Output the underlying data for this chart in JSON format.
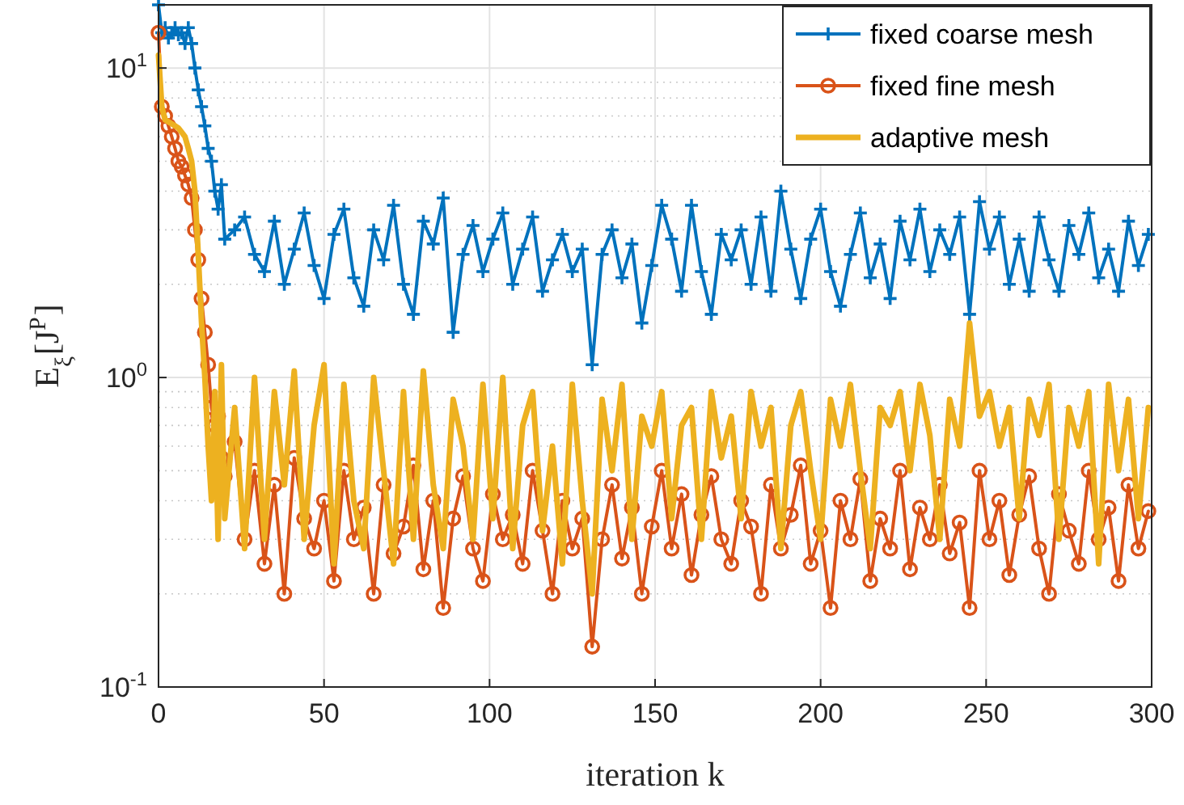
{
  "chart_data": {
    "type": "line",
    "xlabel": "iteration k",
    "ylabel": "E$_{ξ}$[J$^{P}$]",
    "log": "y",
    "x": [
      0,
      1,
      2,
      3,
      4,
      5,
      6,
      7,
      8,
      9,
      10,
      11,
      12,
      13,
      14,
      15,
      16,
      17,
      18,
      19,
      20,
      23,
      26,
      29,
      32,
      35,
      38,
      41,
      44,
      47,
      50,
      53,
      56,
      59,
      62,
      65,
      68,
      71,
      74,
      77,
      80,
      83,
      86,
      89,
      92,
      95,
      98,
      101,
      104,
      107,
      110,
      113,
      116,
      119,
      122,
      125,
      128,
      131,
      134,
      137,
      140,
      143,
      146,
      149,
      152,
      155,
      158,
      161,
      164,
      167,
      170,
      173,
      176,
      179,
      182,
      185,
      188,
      191,
      194,
      197,
      200,
      203,
      206,
      209,
      212,
      215,
      218,
      221,
      224,
      227,
      230,
      233,
      236,
      239,
      242,
      245,
      248,
      251,
      254,
      257,
      260,
      263,
      266,
      269,
      272,
      275,
      278,
      281,
      284,
      287,
      290,
      293,
      296,
      299
    ],
    "series": [
      {
        "name": "fixed coarse mesh",
        "color": "#0072bd",
        "marker": "cross",
        "values": [
          16,
          13,
          13.5,
          12.5,
          13,
          13.5,
          12.8,
          13,
          12,
          13.5,
          12,
          10,
          8.5,
          7.5,
          6.5,
          5.5,
          5,
          4,
          3.5,
          4.2,
          2.8,
          3.0,
          3.3,
          2.5,
          2.2,
          3.2,
          2.0,
          2.6,
          3.4,
          2.3,
          1.8,
          2.9,
          3.5,
          2.1,
          1.7,
          3.0,
          2.4,
          3.6,
          2.0,
          1.6,
          3.2,
          2.7,
          3.8,
          1.4,
          2.5,
          3.1,
          2.2,
          2.8,
          3.4,
          2.0,
          2.6,
          3.3,
          1.9,
          2.4,
          2.9,
          2.2,
          2.6,
          1.1,
          2.5,
          3.0,
          2.1,
          2.7,
          1.5,
          2.3,
          3.6,
          2.8,
          1.9,
          3.6,
          2.2,
          1.6,
          2.9,
          2.4,
          3.0,
          2.0,
          3.3,
          1.9,
          4.0,
          2.6,
          1.8,
          2.8,
          3.5,
          2.2,
          1.7,
          2.5,
          3.4,
          2.1,
          2.7,
          1.8,
          3.2,
          2.4,
          3.5,
          2.2,
          3.0,
          2.5,
          3.3,
          1.6,
          3.7,
          2.6,
          3.3,
          2.0,
          2.8,
          1.9,
          3.3,
          2.4,
          1.9,
          3.1,
          2.5,
          3.4,
          2.1,
          2.6,
          1.9,
          3.2,
          2.3,
          2.9
        ]
      },
      {
        "name": "fixed fine mesh",
        "color": "#d95319",
        "marker": "circle",
        "values": [
          13,
          7.5,
          7,
          6.5,
          6,
          5.5,
          5,
          4.8,
          4.5,
          4.2,
          3.8,
          3,
          2.4,
          1.8,
          1.4,
          1.1,
          0.8,
          0.7,
          0.75,
          0.55,
          0.48,
          0.62,
          0.3,
          0.5,
          0.25,
          0.45,
          0.2,
          0.55,
          0.35,
          0.28,
          0.4,
          0.22,
          0.5,
          0.3,
          0.38,
          0.2,
          0.45,
          0.27,
          0.33,
          0.52,
          0.24,
          0.4,
          0.18,
          0.35,
          0.48,
          0.28,
          0.22,
          0.42,
          0.3,
          0.36,
          0.25,
          0.5,
          0.32,
          0.2,
          0.4,
          0.28,
          0.35,
          0.135,
          0.3,
          0.45,
          0.26,
          0.38,
          0.2,
          0.33,
          0.5,
          0.28,
          0.42,
          0.23,
          0.36,
          0.48,
          0.3,
          0.25,
          0.4,
          0.33,
          0.2,
          0.45,
          0.28,
          0.36,
          0.52,
          0.25,
          0.32,
          0.18,
          0.4,
          0.3,
          0.47,
          0.22,
          0.35,
          0.28,
          0.5,
          0.24,
          0.38,
          0.3,
          0.45,
          0.27,
          0.34,
          0.18,
          0.5,
          0.3,
          0.4,
          0.23,
          0.36,
          0.48,
          0.28,
          0.2,
          0.42,
          0.32,
          0.25,
          0.5,
          0.3,
          0.38,
          0.22,
          0.45,
          0.28,
          0.37
        ]
      },
      {
        "name": "adaptive mesh",
        "color": "#edb120",
        "marker": "none",
        "values": [
          11,
          7.5,
          6.8,
          6.7,
          6.6,
          6.5,
          6.4,
          6.2,
          6.0,
          5.5,
          5.0,
          4.0,
          2.5,
          1.5,
          1.0,
          0.6,
          0.4,
          0.9,
          0.3,
          1.1,
          0.35,
          0.8,
          0.28,
          1.0,
          0.3,
          0.9,
          0.45,
          1.05,
          0.3,
          0.7,
          1.1,
          0.25,
          0.95,
          0.4,
          0.28,
          1.0,
          0.5,
          0.25,
          0.9,
          0.3,
          1.05,
          0.45,
          0.28,
          0.85,
          0.6,
          0.3,
          0.95,
          0.35,
          1.0,
          0.28,
          0.7,
          0.9,
          0.32,
          0.6,
          0.25,
          0.95,
          0.4,
          0.2,
          0.85,
          0.5,
          0.95,
          0.3,
          0.75,
          0.6,
          0.9,
          0.35,
          0.7,
          0.8,
          0.3,
          0.9,
          0.55,
          0.75,
          0.35,
          0.9,
          0.6,
          0.8,
          0.28,
          0.7,
          0.9,
          0.5,
          0.3,
          0.85,
          0.6,
          0.95,
          0.5,
          0.28,
          0.8,
          0.7,
          0.9,
          0.5,
          0.95,
          0.65,
          0.3,
          0.85,
          0.6,
          1.5,
          0.75,
          0.9,
          0.6,
          0.8,
          0.35,
          0.85,
          0.65,
          0.95,
          0.3,
          0.8,
          0.6,
          0.9,
          0.25,
          0.95,
          0.5,
          0.85,
          0.35,
          0.8
        ]
      }
    ],
    "xlim": [
      0,
      300
    ],
    "xticks": [
      0,
      50,
      100,
      150,
      200,
      250,
      300
    ],
    "ylim": [
      0.1,
      16
    ],
    "yticks": [
      {
        "value": 0.1,
        "label": "10$^{-1}$"
      },
      {
        "value": 1,
        "label": "10$^{0}$"
      },
      {
        "value": 10,
        "label": "10$^{1}$"
      }
    ],
    "grid": true,
    "legend": "top right"
  }
}
